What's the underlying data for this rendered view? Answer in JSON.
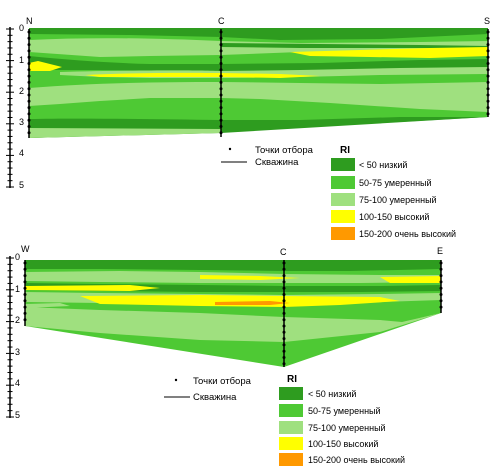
{
  "colors": {
    "lt50": "#2e9c1f",
    "r50_75": "#4ec934",
    "r75_100": "#9fe07f",
    "r100_150": "#ffff00",
    "r150_200": "#ff9900",
    "axis": "#000000",
    "borehole": "#000000"
  },
  "sections": [
    {
      "id": "ncs",
      "points": [
        {
          "label": "N",
          "pos": 0
        },
        {
          "label": "C",
          "pos": 0.424
        },
        {
          "label": "S",
          "pos": 1
        }
      ],
      "depth_ticks": [
        "0",
        "1",
        "2",
        "3",
        "4",
        "5"
      ],
      "legend": {
        "title": "RI",
        "sampling_points_label": "Точки отбора",
        "borehole_label": "Скважина",
        "items": [
          {
            "label": "< 50 низкий",
            "color": "#2e9c1f"
          },
          {
            "label": "50-75 умеренный",
            "color": "#4ec934"
          },
          {
            "label": "75-100 умеренный",
            "color": "#9fe07f"
          },
          {
            "label": "100-150 высокий",
            "color": "#ffff00"
          },
          {
            "label": "150-200 очень высокий",
            "color": "#ff9900"
          }
        ]
      }
    },
    {
      "id": "wce",
      "points": [
        {
          "label": "W",
          "pos": 0
        },
        {
          "label": "C",
          "pos": 0.617
        },
        {
          "label": "E",
          "pos": 1
        }
      ],
      "depth_ticks": [
        "0",
        "1",
        "2",
        "3",
        "4",
        "5"
      ],
      "legend": {
        "title": "RI",
        "sampling_points_label": "Точки отбора",
        "borehole_label": "Скважина",
        "items": [
          {
            "label": "< 50 низкий",
            "color": "#2e9c1f"
          },
          {
            "label": "50-75 умеренный",
            "color": "#4ec934"
          },
          {
            "label": "75-100 умеренный",
            "color": "#9fe07f"
          },
          {
            "label": "100-150 высокий",
            "color": "#ffff00"
          },
          {
            "label": "150-200 очень высокий",
            "color": "#ff9900"
          }
        ]
      }
    }
  ]
}
